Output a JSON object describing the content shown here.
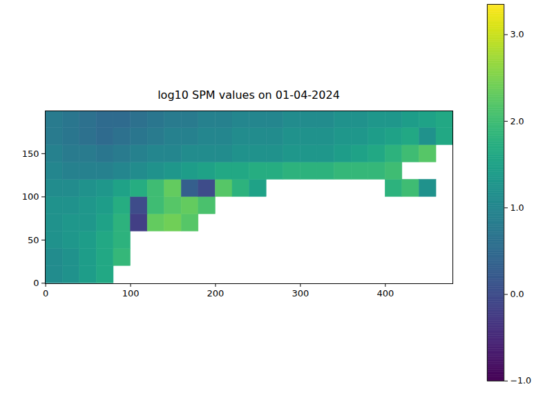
{
  "chart_data": {
    "type": "heatmap",
    "title": "log10 SPM values on 01-04-2024",
    "xlim": [
      -0.5,
      479.5
    ],
    "ylim": [
      -0.5,
      199.5
    ],
    "xticks": [
      0,
      100,
      200,
      300,
      400
    ],
    "yticks": [
      0,
      50,
      100,
      150
    ],
    "x": [
      10,
      30,
      50,
      70,
      90,
      110,
      130,
      150,
      170,
      190,
      210,
      230,
      250,
      270,
      290,
      310,
      330,
      350,
      370,
      390,
      410,
      430,
      450,
      470
    ],
    "y": [
      10,
      30,
      50,
      70,
      90,
      110,
      130,
      150,
      170,
      190
    ],
    "values": [
      [
        1.1,
        1.2,
        1.4,
        1.6,
        null,
        null,
        null,
        null,
        null,
        null,
        null,
        null,
        null,
        null,
        null,
        null,
        null,
        null,
        null,
        null,
        null,
        null,
        null,
        null
      ],
      [
        1.1,
        1.2,
        1.4,
        1.6,
        1.9,
        null,
        null,
        null,
        null,
        null,
        null,
        null,
        null,
        null,
        null,
        null,
        null,
        null,
        null,
        null,
        null,
        null,
        null,
        null
      ],
      [
        1.2,
        1.3,
        1.4,
        1.6,
        1.8,
        null,
        null,
        null,
        null,
        null,
        null,
        null,
        null,
        null,
        null,
        null,
        null,
        null,
        null,
        null,
        null,
        null,
        null,
        null
      ],
      [
        1.2,
        1.3,
        1.3,
        1.5,
        1.8,
        -0.2,
        2.3,
        2.4,
        2.2,
        null,
        null,
        null,
        null,
        null,
        null,
        null,
        null,
        null,
        null,
        null,
        null,
        null,
        null,
        null
      ],
      [
        1.2,
        1.2,
        1.3,
        1.4,
        1.7,
        0.0,
        2.0,
        2.2,
        2.3,
        2.1,
        null,
        null,
        null,
        null,
        null,
        null,
        null,
        null,
        null,
        null,
        null,
        null,
        null,
        null
      ],
      [
        1.1,
        1.1,
        1.2,
        1.3,
        1.5,
        1.7,
        2.0,
        2.3,
        0.3,
        0.0,
        2.2,
        1.8,
        1.5,
        null,
        null,
        null,
        null,
        null,
        null,
        null,
        1.8,
        2.0,
        1.2,
        null
      ],
      [
        1.0,
        0.9,
        0.9,
        0.9,
        1.0,
        1.1,
        1.2,
        1.3,
        1.4,
        1.5,
        1.6,
        1.6,
        1.7,
        1.7,
        1.8,
        1.8,
        1.8,
        1.9,
        1.9,
        1.9,
        2.0,
        null,
        null,
        null
      ],
      [
        0.9,
        0.8,
        0.8,
        0.7,
        0.8,
        0.9,
        1.0,
        1.0,
        1.1,
        1.1,
        1.1,
        1.2,
        1.2,
        1.2,
        1.3,
        1.3,
        1.3,
        1.4,
        1.5,
        1.6,
        1.8,
        2.0,
        2.2,
        null
      ],
      [
        0.8,
        0.7,
        0.6,
        0.5,
        0.6,
        0.7,
        0.8,
        0.9,
        0.9,
        1.0,
        1.0,
        1.1,
        1.1,
        1.1,
        1.2,
        1.2,
        1.2,
        1.3,
        1.3,
        1.4,
        1.5,
        1.6,
        1.2,
        1.6
      ],
      [
        0.8,
        0.7,
        0.6,
        0.5,
        0.5,
        0.6,
        0.7,
        0.8,
        0.8,
        0.9,
        0.9,
        1.0,
        1.0,
        1.0,
        1.1,
        1.1,
        1.1,
        1.2,
        1.2,
        1.3,
        1.3,
        1.4,
        1.5,
        1.6
      ]
    ],
    "colorbar": {
      "range": [
        -1,
        3.35
      ],
      "ticks": [
        -1,
        0,
        1,
        2,
        3
      ]
    }
  }
}
